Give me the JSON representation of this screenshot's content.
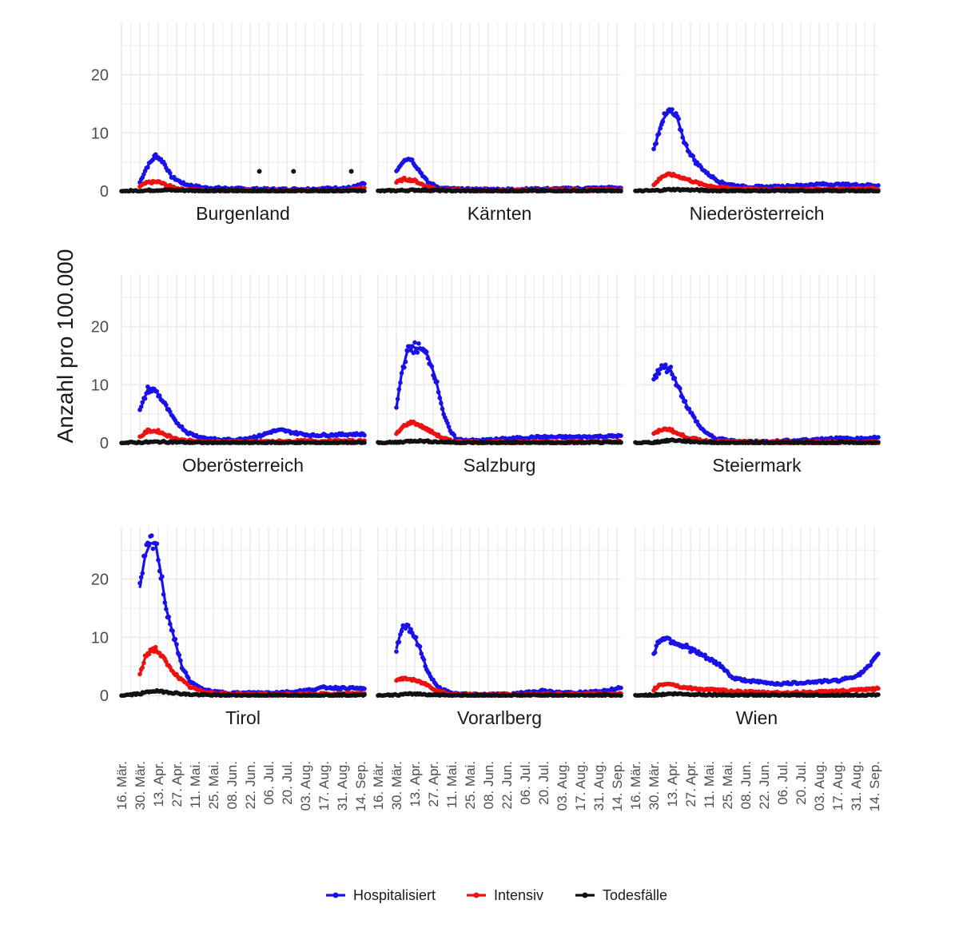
{
  "chart_data": {
    "type": "scatter",
    "facet_layout": "3x3 grid",
    "ylabel": "Anzahl pro 100.000",
    "xlabel": "",
    "ylim": [
      -0.8,
      29
    ],
    "y_ticks": [
      0,
      10,
      20
    ],
    "x_range_days": [
      0,
      185
    ],
    "x_tick_days": [
      0,
      14,
      28,
      42,
      56,
      70,
      84,
      98,
      112,
      126,
      140,
      154,
      168,
      182
    ],
    "x_tick_labels": [
      "16. Mär.",
      "30. Mär.",
      "13. Apr.",
      "27. Apr.",
      "11. Mai.",
      "25. Mai.",
      "08. Jun.",
      "22. Jun.",
      "06. Jul.",
      "20. Jul.",
      "03. Aug.",
      "17. Aug.",
      "31. Aug.",
      "14. Sep."
    ],
    "legend": {
      "position": "bottom",
      "entries": [
        {
          "name": "Hospitalisiert",
          "color": "#1a10e8"
        },
        {
          "name": "Intensiv",
          "color": "#ee1111"
        },
        {
          "name": "Todesfälle",
          "color": "#111111"
        }
      ]
    },
    "colors": {
      "hosp": "#1a10e8",
      "icu": "#ee1111",
      "deaths": "#111111",
      "grid": "#ebebeb"
    },
    "panels": [
      {
        "name": "Burgenland",
        "hosp": [
          [
            14,
            1.5
          ],
          [
            19,
            4
          ],
          [
            26,
            6.2
          ],
          [
            32,
            5
          ],
          [
            38,
            2.5
          ],
          [
            48,
            1.2
          ],
          [
            62,
            0.6
          ],
          [
            90,
            0.4
          ],
          [
            120,
            0.3
          ],
          [
            150,
            0.4
          ],
          [
            175,
            0.6
          ],
          [
            185,
            1.3
          ]
        ],
        "icu": [
          [
            14,
            0.8
          ],
          [
            20,
            1.5
          ],
          [
            28,
            1.6
          ],
          [
            36,
            0.9
          ],
          [
            46,
            0.3
          ],
          [
            65,
            0.1
          ],
          [
            120,
            0.1
          ],
          [
            160,
            0.1
          ],
          [
            185,
            0.4
          ]
        ],
        "deaths": [
          [
            0,
            0
          ],
          [
            14,
            0.1
          ],
          [
            30,
            0.2
          ],
          [
            60,
            0.1
          ],
          [
            120,
            0.05
          ],
          [
            185,
            0.05
          ]
        ],
        "outliers": [
          [
            105,
            3.4
          ],
          [
            131,
            3.4
          ],
          [
            175,
            3.4
          ]
        ]
      },
      {
        "name": "Kärnten",
        "hosp": [
          [
            14,
            3.5
          ],
          [
            20,
            5.5
          ],
          [
            25,
            5.6
          ],
          [
            30,
            4
          ],
          [
            38,
            1.5
          ],
          [
            48,
            0.5
          ],
          [
            65,
            0.3
          ],
          [
            100,
            0.3
          ],
          [
            140,
            0.4
          ],
          [
            185,
            0.6
          ]
        ],
        "icu": [
          [
            14,
            1.5
          ],
          [
            20,
            2.1
          ],
          [
            28,
            1.8
          ],
          [
            35,
            1
          ],
          [
            45,
            0.3
          ],
          [
            65,
            0.1
          ],
          [
            185,
            0.2
          ]
        ],
        "deaths": [
          [
            0,
            0
          ],
          [
            14,
            0.1
          ],
          [
            30,
            0.2
          ],
          [
            60,
            0.05
          ],
          [
            185,
            0.05
          ]
        ],
        "outliers": []
      },
      {
        "name": "Niederösterreich",
        "hosp": [
          [
            14,
            7
          ],
          [
            20,
            12
          ],
          [
            26,
            13.8
          ],
          [
            32,
            12.5
          ],
          [
            38,
            8
          ],
          [
            46,
            5
          ],
          [
            55,
            3
          ],
          [
            65,
            1.5
          ],
          [
            80,
            0.8
          ],
          [
            100,
            0.7
          ],
          [
            120,
            0.9
          ],
          [
            140,
            1.2
          ],
          [
            160,
            1.1
          ],
          [
            185,
            1
          ]
        ],
        "icu": [
          [
            14,
            1
          ],
          [
            20,
            2.5
          ],
          [
            26,
            2.9
          ],
          [
            32,
            2.6
          ],
          [
            40,
            2
          ],
          [
            50,
            1.2
          ],
          [
            65,
            0.6
          ],
          [
            90,
            0.3
          ],
          [
            130,
            0.3
          ],
          [
            185,
            0.4
          ]
        ],
        "deaths": [
          [
            0,
            0
          ],
          [
            14,
            0.1
          ],
          [
            28,
            0.3
          ],
          [
            45,
            0.2
          ],
          [
            65,
            0.05
          ],
          [
            185,
            0.05
          ]
        ],
        "outliers": []
      },
      {
        "name": "Oberösterreich",
        "hosp": [
          [
            14,
            5.5
          ],
          [
            20,
            9.2
          ],
          [
            26,
            9
          ],
          [
            32,
            7
          ],
          [
            40,
            4
          ],
          [
            50,
            1.8
          ],
          [
            60,
            1
          ],
          [
            75,
            0.5
          ],
          [
            90,
            0.6
          ],
          [
            105,
            1.2
          ],
          [
            115,
            2
          ],
          [
            122,
            2.2
          ],
          [
            130,
            1.8
          ],
          [
            145,
            1.3
          ],
          [
            160,
            1.4
          ],
          [
            175,
            1.5
          ],
          [
            185,
            1.5
          ]
        ],
        "icu": [
          [
            14,
            1
          ],
          [
            20,
            2.1
          ],
          [
            28,
            2
          ],
          [
            36,
            1.2
          ],
          [
            45,
            0.5
          ],
          [
            60,
            0.2
          ],
          [
            100,
            0.2
          ],
          [
            140,
            0.3
          ],
          [
            185,
            0.3
          ]
        ],
        "deaths": [
          [
            0,
            0
          ],
          [
            14,
            0.1
          ],
          [
            30,
            0.2
          ],
          [
            60,
            0.05
          ],
          [
            185,
            0.05
          ]
        ],
        "outliers": []
      },
      {
        "name": "Salzburg",
        "hosp": [
          [
            14,
            6
          ],
          [
            18,
            12
          ],
          [
            22,
            15.5
          ],
          [
            26,
            16.5
          ],
          [
            32,
            16.2
          ],
          [
            38,
            15
          ],
          [
            44,
            11
          ],
          [
            50,
            5
          ],
          [
            55,
            2
          ],
          [
            60,
            0.6
          ],
          [
            75,
            0.4
          ],
          [
            90,
            0.6
          ],
          [
            120,
            1
          ],
          [
            150,
            1
          ],
          [
            185,
            1.2
          ]
        ],
        "icu": [
          [
            14,
            1.5
          ],
          [
            20,
            3
          ],
          [
            26,
            3.6
          ],
          [
            32,
            3
          ],
          [
            40,
            2
          ],
          [
            48,
            1
          ],
          [
            56,
            0.3
          ],
          [
            80,
            0.1
          ],
          [
            185,
            0.2
          ]
        ],
        "deaths": [
          [
            0,
            0
          ],
          [
            14,
            0.1
          ],
          [
            28,
            0.4
          ],
          [
            45,
            0.2
          ],
          [
            65,
            0.05
          ],
          [
            185,
            0.05
          ]
        ],
        "outliers": []
      },
      {
        "name": "Steiermark",
        "hosp": [
          [
            14,
            11.5
          ],
          [
            20,
            12.8
          ],
          [
            26,
            13
          ],
          [
            32,
            10
          ],
          [
            40,
            6
          ],
          [
            50,
            2.5
          ],
          [
            60,
            0.8
          ],
          [
            75,
            0.3
          ],
          [
            100,
            0.2
          ],
          [
            130,
            0.5
          ],
          [
            150,
            0.8
          ],
          [
            170,
            0.7
          ],
          [
            185,
            1
          ]
        ],
        "icu": [
          [
            14,
            1.5
          ],
          [
            20,
            2.3
          ],
          [
            26,
            2.4
          ],
          [
            32,
            1.6
          ],
          [
            42,
            0.8
          ],
          [
            55,
            0.3
          ],
          [
            80,
            0.1
          ],
          [
            185,
            0.1
          ]
        ],
        "deaths": [
          [
            0,
            0
          ],
          [
            14,
            0.1
          ],
          [
            28,
            0.5
          ],
          [
            45,
            0.2
          ],
          [
            65,
            0.05
          ],
          [
            185,
            0.05
          ]
        ],
        "outliers": []
      },
      {
        "name": "Tirol",
        "hosp": [
          [
            14,
            18.5
          ],
          [
            18,
            24
          ],
          [
            22,
            26.2
          ],
          [
            26,
            26
          ],
          [
            30,
            21
          ],
          [
            34,
            15
          ],
          [
            40,
            10
          ],
          [
            46,
            5
          ],
          [
            52,
            2.5
          ],
          [
            60,
            1.2
          ],
          [
            70,
            0.6
          ],
          [
            90,
            0.4
          ],
          [
            110,
            0.5
          ],
          [
            130,
            0.6
          ],
          [
            145,
            1
          ],
          [
            155,
            1.4
          ],
          [
            165,
            1.3
          ],
          [
            185,
            1.2
          ]
        ],
        "icu": [
          [
            14,
            3.5
          ],
          [
            18,
            6.5
          ],
          [
            22,
            7.8
          ],
          [
            26,
            8
          ],
          [
            30,
            7
          ],
          [
            36,
            5
          ],
          [
            44,
            3
          ],
          [
            52,
            1.5
          ],
          [
            60,
            0.8
          ],
          [
            75,
            0.3
          ],
          [
            100,
            0.2
          ],
          [
            140,
            0.2
          ],
          [
            185,
            0.3
          ]
        ],
        "deaths": [
          [
            0,
            0
          ],
          [
            14,
            0.3
          ],
          [
            24,
            0.8
          ],
          [
            35,
            0.6
          ],
          [
            50,
            0.2
          ],
          [
            70,
            0.05
          ],
          [
            185,
            0.05
          ]
        ],
        "outliers": []
      },
      {
        "name": "Vorarlberg",
        "hosp": [
          [
            14,
            8
          ],
          [
            18,
            11.5
          ],
          [
            22,
            12.2
          ],
          [
            26,
            11
          ],
          [
            32,
            8
          ],
          [
            38,
            4
          ],
          [
            45,
            1.5
          ],
          [
            55,
            0.4
          ],
          [
            70,
            0.2
          ],
          [
            100,
            0.2
          ],
          [
            125,
            0.8
          ],
          [
            135,
            0.5
          ],
          [
            155,
            0.5
          ],
          [
            175,
            0.8
          ],
          [
            185,
            1.5
          ]
        ],
        "icu": [
          [
            14,
            2.5
          ],
          [
            20,
            3
          ],
          [
            28,
            2.6
          ],
          [
            36,
            2
          ],
          [
            44,
            1
          ],
          [
            55,
            0.2
          ],
          [
            80,
            0.1
          ],
          [
            185,
            0.3
          ]
        ],
        "deaths": [
          [
            0,
            0
          ],
          [
            14,
            0.1
          ],
          [
            28,
            0.3
          ],
          [
            45,
            0.1
          ],
          [
            65,
            0.05
          ],
          [
            185,
            0.05
          ]
        ],
        "outliers": []
      },
      {
        "name": "Wien",
        "hosp": [
          [
            14,
            7
          ],
          [
            18,
            9.5
          ],
          [
            22,
            10
          ],
          [
            30,
            9.2
          ],
          [
            40,
            8.2
          ],
          [
            50,
            7
          ],
          [
            58,
            6
          ],
          [
            66,
            5
          ],
          [
            74,
            3
          ],
          [
            84,
            2.6
          ],
          [
            95,
            2.3
          ],
          [
            110,
            2
          ],
          [
            125,
            2.2
          ],
          [
            140,
            2.4
          ],
          [
            155,
            2.6
          ],
          [
            170,
            3.5
          ],
          [
            178,
            5
          ],
          [
            185,
            7
          ]
        ],
        "icu": [
          [
            14,
            1
          ],
          [
            18,
            1.8
          ],
          [
            26,
            2.1
          ],
          [
            34,
            1.5
          ],
          [
            44,
            1.2
          ],
          [
            56,
            1
          ],
          [
            70,
            0.8
          ],
          [
            85,
            0.6
          ],
          [
            100,
            0.5
          ],
          [
            120,
            0.5
          ],
          [
            140,
            0.6
          ],
          [
            160,
            0.8
          ],
          [
            175,
            1
          ],
          [
            185,
            1.2
          ]
        ],
        "deaths": [
          [
            0,
            0
          ],
          [
            14,
            0.1
          ],
          [
            28,
            0.3
          ],
          [
            45,
            0.2
          ],
          [
            70,
            0.1
          ],
          [
            100,
            0.05
          ],
          [
            185,
            0.05
          ]
        ],
        "outliers": []
      }
    ]
  }
}
